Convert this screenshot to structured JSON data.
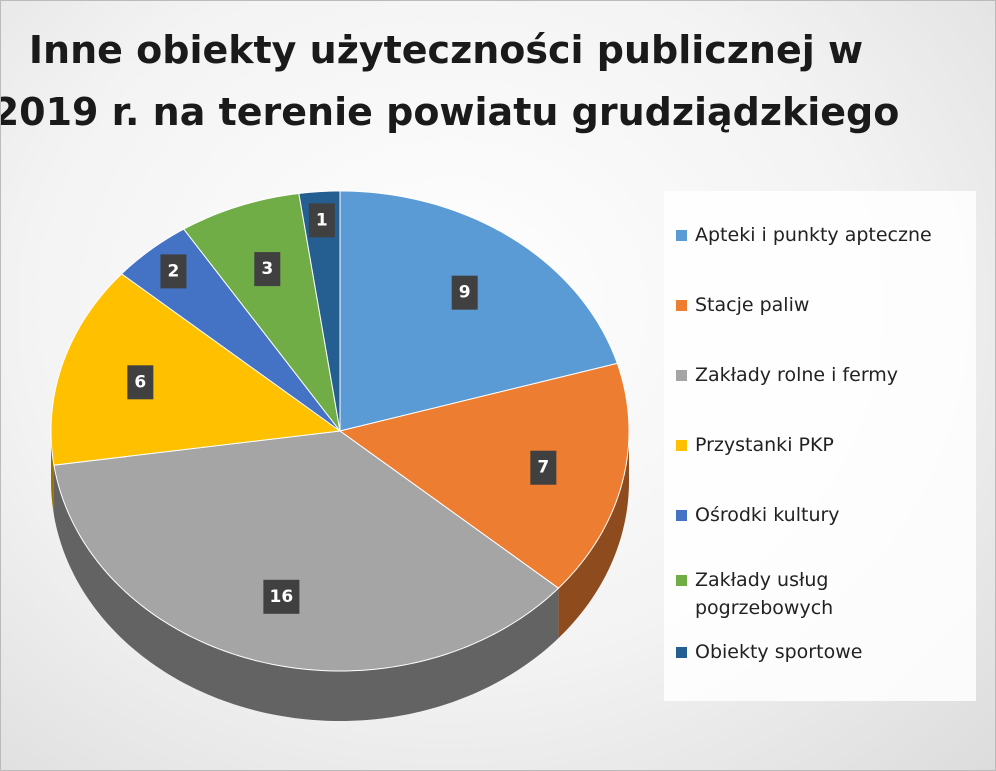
{
  "chart_data": {
    "type": "pie",
    "title": [
      "Inne obiekty użyteczności publicznej w",
      "2019 r. na terenie powiatu grudziądzkiego"
    ],
    "categories": [
      "Apteki i punkty apteczne",
      "Stacje paliw",
      "Zakłady rolne i fermy",
      "Przystanki PKP",
      "Ośrodki kultury",
      "Zakłady usług pogrzebowych",
      "Obiekty sportowe"
    ],
    "values": [
      9,
      7,
      16,
      6,
      2,
      3,
      1
    ],
    "colors": [
      "#5b9bd5",
      "#ed7d31",
      "#a5a5a5",
      "#ffc000",
      "#4472c4",
      "#70ad47",
      "#255e91"
    ],
    "legend": "right"
  }
}
